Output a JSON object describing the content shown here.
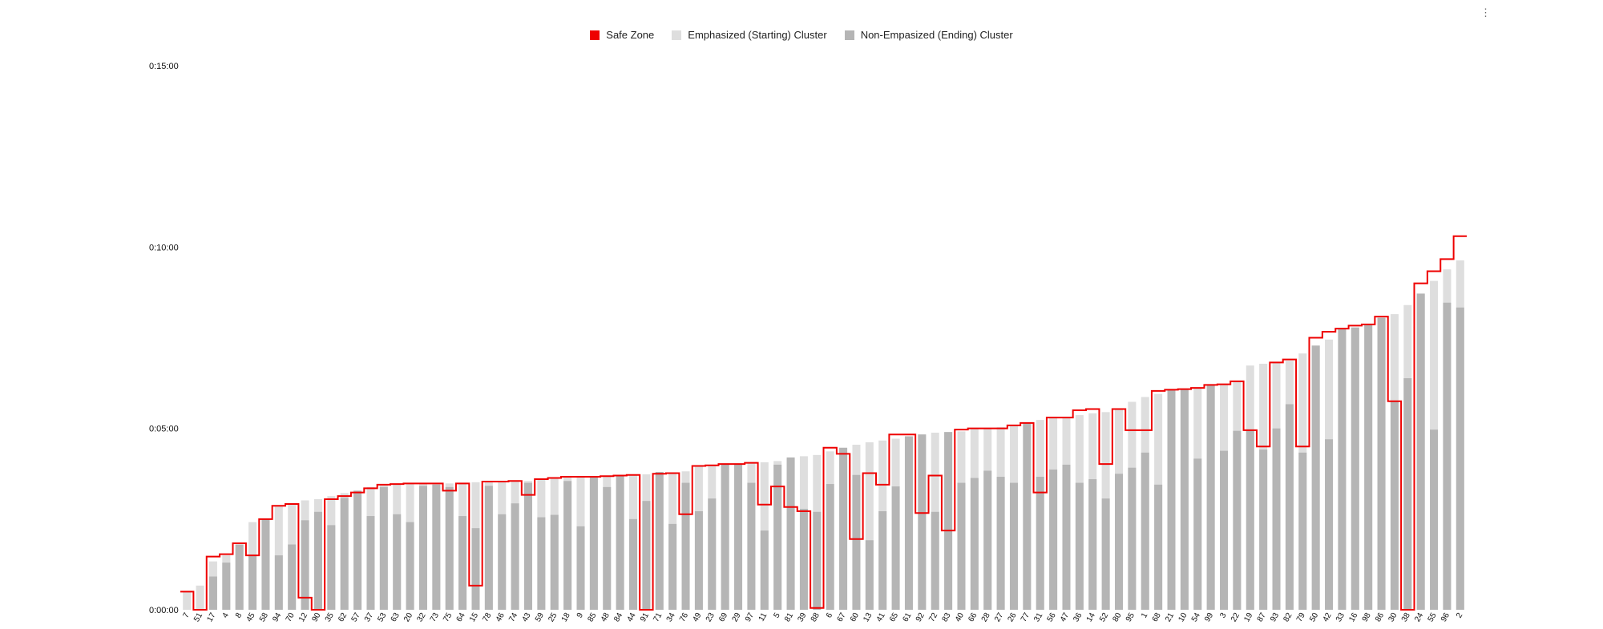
{
  "menu": {
    "icon": "more-vert-icon",
    "glyph": "⋮"
  },
  "colors": {
    "safe": "#ee0000",
    "emph": "#dedede",
    "nonemph": "#b5b5b5"
  },
  "legend": [
    {
      "label": "Safe Zone",
      "color": "#ee0000"
    },
    {
      "label": "Emphasized (Starting) Cluster",
      "color": "#dedede"
    },
    {
      "label": "Non-Empasized (Ending) Cluster",
      "color": "#b5b5b5"
    }
  ],
  "chart_data": {
    "type": "bar",
    "title": "",
    "xlabel": "",
    "ylabel": "",
    "y_unit": "seconds",
    "ylim": [
      0,
      900
    ],
    "y_ticks": [
      {
        "value": 0,
        "label": "0:00:00"
      },
      {
        "value": 300,
        "label": "0:05:00"
      },
      {
        "value": 600,
        "label": "0:10:00"
      },
      {
        "value": 900,
        "label": "0:15:00"
      }
    ],
    "legend_position": "top-center",
    "stacked": false,
    "grid": false,
    "categories": [
      "7",
      "51",
      "17",
      "4",
      "8",
      "45",
      "58",
      "94",
      "70",
      "12",
      "90",
      "35",
      "62",
      "57",
      "37",
      "53",
      "63",
      "20",
      "32",
      "73",
      "75",
      "64",
      "15",
      "78",
      "46",
      "74",
      "43",
      "59",
      "25",
      "18",
      "9",
      "85",
      "48",
      "84",
      "44",
      "91",
      "71",
      "34",
      "76",
      "49",
      "23",
      "69",
      "29",
      "97",
      "11",
      "5",
      "81",
      "39",
      "88",
      "6",
      "67",
      "60",
      "13",
      "41",
      "65",
      "61",
      "92",
      "72",
      "83",
      "40",
      "66",
      "28",
      "27",
      "26",
      "77",
      "31",
      "56",
      "47",
      "36",
      "14",
      "52",
      "80",
      "95",
      "1",
      "68",
      "21",
      "10",
      "54",
      "99",
      "3",
      "22",
      "19",
      "87",
      "93",
      "82",
      "79",
      "50",
      "42",
      "33",
      "16",
      "98",
      "86",
      "30",
      "38",
      "24",
      "55",
      "96",
      "2"
    ],
    "series": [
      {
        "name": "Emphasized (Starting) Cluster",
        "values": [
          30,
          40,
          80,
          90,
          108,
          145,
          150,
          172,
          175,
          181,
          183,
          188,
          193,
          197,
          203,
          207,
          208,
          209,
          209,
          209,
          209,
          209,
          211,
          212,
          212,
          213,
          213,
          216,
          218,
          220,
          220,
          220,
          221,
          222,
          223,
          224,
          225,
          226,
          229,
          238,
          239,
          241,
          241,
          243,
          244,
          246,
          250,
          254,
          256,
          262,
          268,
          273,
          277,
          280,
          283,
          287,
          290,
          293,
          294,
          295,
          299,
          300,
          302,
          305,
          309,
          314,
          317,
          318,
          322,
          325,
          327,
          332,
          344,
          352,
          357,
          364,
          365,
          367,
          372,
          373,
          378,
          404,
          407,
          409,
          412,
          424,
          437,
          447,
          465,
          467,
          472,
          483,
          489,
          504,
          523,
          544,
          563,
          578
        ]
      },
      {
        "name": "Non-Empasized (Ending) Cluster",
        "values": [
          0,
          0,
          55,
          78,
          108,
          90,
          150,
          90,
          108,
          148,
          162,
          140,
          185,
          197,
          155,
          203,
          158,
          145,
          205,
          207,
          203,
          155,
          135,
          205,
          158,
          176,
          210,
          153,
          157,
          213,
          138,
          220,
          203,
          222,
          150,
          180,
          228,
          142,
          210,
          163,
          184,
          241,
          241,
          210,
          131,
          240,
          252,
          167,
          162,
          208,
          268,
          223,
          115,
          163,
          204,
          287,
          290,
          162,
          294,
          210,
          218,
          230,
          220,
          210,
          309,
          220,
          232,
          240,
          210,
          216,
          184,
          225,
          235,
          260,
          207,
          364,
          365,
          250,
          372,
          263,
          296,
          296,
          265,
          300,
          340,
          260,
          437,
          282,
          465,
          467,
          472,
          483,
          345,
          383,
          523,
          298,
          508,
          500
        ]
      },
      {
        "name": "Safe Zone",
        "values": [
          30,
          0,
          88,
          92,
          110,
          90,
          150,
          172,
          175,
          20,
          0,
          183,
          188,
          194,
          201,
          207,
          208,
          209,
          209,
          209,
          197,
          209,
          40,
          212,
          212,
          213,
          190,
          216,
          218,
          220,
          220,
          220,
          221,
          222,
          223,
          0,
          225,
          226,
          158,
          238,
          239,
          241,
          241,
          243,
          174,
          204,
          170,
          163,
          3,
          268,
          258,
          117,
          226,
          207,
          290,
          290,
          160,
          222,
          131,
          298,
          300,
          300,
          300,
          305,
          309,
          194,
          318,
          318,
          330,
          332,
          241,
          332,
          297,
          297,
          362,
          364,
          365,
          367,
          372,
          373,
          378,
          297,
          270,
          409,
          414,
          270,
          450,
          460,
          465,
          470,
          472,
          485,
          345,
          0,
          540,
          560,
          580,
          618
        ]
      }
    ]
  }
}
